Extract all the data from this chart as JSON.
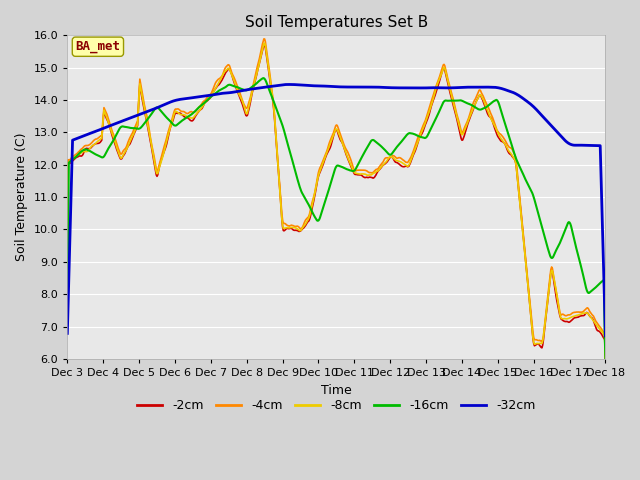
{
  "title": "Soil Temperatures Set B",
  "xlabel": "Time",
  "ylabel": "Soil Temperature (C)",
  "ylim": [
    6.0,
    16.0
  ],
  "yticks": [
    6.0,
    7.0,
    8.0,
    9.0,
    10.0,
    11.0,
    12.0,
    13.0,
    14.0,
    15.0,
    16.0
  ],
  "fig_bg_color": "#d4d4d4",
  "plot_bg_color": "#e8e8e8",
  "legend_label": "BA_met",
  "series_labels": [
    "-2cm",
    "-4cm",
    "-8cm",
    "-16cm",
    "-32cm"
  ],
  "series_colors": [
    "#cc0000",
    "#ff8800",
    "#eecc00",
    "#00bb00",
    "#0000cc"
  ],
  "series_linewidths": [
    1.2,
    1.2,
    1.2,
    1.5,
    2.0
  ],
  "n_points": 721,
  "x_start": 3.0,
  "x_end": 18.0,
  "xtick_positions": [
    3,
    4,
    5,
    6,
    7,
    8,
    9,
    10,
    11,
    12,
    13,
    14,
    15,
    16,
    17,
    18
  ],
  "xtick_labels": [
    "Dec 3",
    "Dec 4",
    "Dec 5",
    "Dec 6",
    "Dec 7",
    "Dec 8",
    "Dec 9",
    "Dec 10",
    "Dec 11",
    "Dec 12",
    "Dec 13",
    "Dec 14",
    "Dec 15",
    "Dec 16",
    "Dec 17",
    "Dec 18"
  ],
  "grid_color": "#ffffff",
  "title_fontsize": 11,
  "axis_fontsize": 9,
  "tick_fontsize": 8
}
